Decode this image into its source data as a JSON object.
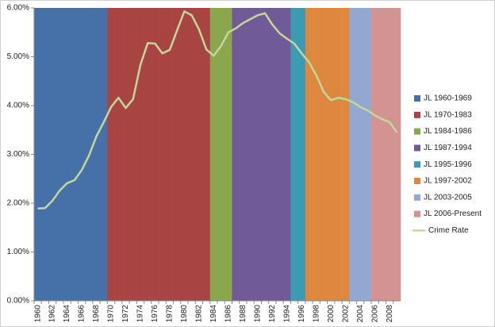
{
  "chart_data": {
    "type": "combo",
    "categories": [
      "1960",
      null,
      "1962",
      null,
      "1964",
      null,
      "1966",
      null,
      "1968",
      null,
      "1970",
      null,
      "1972",
      null,
      "1974",
      null,
      "1976",
      null,
      "1978",
      null,
      "1980",
      null,
      "1982",
      null,
      "1984",
      null,
      "1986",
      null,
      "1988",
      null,
      "1990",
      null,
      "1992",
      null,
      "1994",
      null,
      "1996",
      null,
      "1998",
      null,
      "2000",
      null,
      "2002",
      null,
      "2004",
      null,
      "2006",
      null,
      "2008",
      null
    ],
    "series": [
      {
        "name": "JL 1960-1969",
        "type": "bar",
        "color": "#4671a8",
        "values": [
          6,
          6,
          6,
          6,
          6,
          6,
          6,
          6,
          6,
          6,
          null,
          null,
          null,
          null,
          null,
          null,
          null,
          null,
          null,
          null,
          null,
          null,
          null,
          null,
          null,
          null,
          null,
          null,
          null,
          null,
          null,
          null,
          null,
          null,
          null,
          null,
          null,
          null,
          null,
          null,
          null,
          null,
          null,
          null,
          null,
          null,
          null,
          null,
          null,
          null
        ]
      },
      {
        "name": "JL 1970-1983",
        "type": "bar",
        "color": "#a84542",
        "values": [
          null,
          null,
          null,
          null,
          null,
          null,
          null,
          null,
          null,
          null,
          6,
          6,
          6,
          6,
          6,
          6,
          6,
          6,
          6,
          6,
          6,
          6,
          6,
          6,
          null,
          null,
          null,
          null,
          null,
          null,
          null,
          null,
          null,
          null,
          null,
          null,
          null,
          null,
          null,
          null,
          null,
          null,
          null,
          null,
          null,
          null,
          null,
          null,
          null,
          null
        ]
      },
      {
        "name": "JL 1984-1986",
        "type": "bar",
        "color": "#8aa74e",
        "values": [
          null,
          null,
          null,
          null,
          null,
          null,
          null,
          null,
          null,
          null,
          null,
          null,
          null,
          null,
          null,
          null,
          null,
          null,
          null,
          null,
          null,
          null,
          null,
          null,
          6,
          6,
          6,
          null,
          null,
          null,
          null,
          null,
          null,
          null,
          null,
          null,
          null,
          null,
          null,
          null,
          null,
          null,
          null,
          null,
          null,
          null,
          null,
          null,
          null,
          null
        ]
      },
      {
        "name": "JL 1987-1994",
        "type": "bar",
        "color": "#715a98",
        "values": [
          null,
          null,
          null,
          null,
          null,
          null,
          null,
          null,
          null,
          null,
          null,
          null,
          null,
          null,
          null,
          null,
          null,
          null,
          null,
          null,
          null,
          null,
          null,
          null,
          null,
          null,
          null,
          6,
          6,
          6,
          6,
          6,
          6,
          6,
          6,
          null,
          null,
          null,
          null,
          null,
          null,
          null,
          null,
          null,
          null,
          null,
          null,
          null,
          null,
          null
        ]
      },
      {
        "name": "JL 1995-1996",
        "type": "bar",
        "color": "#3d9ab3",
        "values": [
          null,
          null,
          null,
          null,
          null,
          null,
          null,
          null,
          null,
          null,
          null,
          null,
          null,
          null,
          null,
          null,
          null,
          null,
          null,
          null,
          null,
          null,
          null,
          null,
          null,
          null,
          null,
          null,
          null,
          null,
          null,
          null,
          null,
          null,
          null,
          6,
          6,
          null,
          null,
          null,
          null,
          null,
          null,
          null,
          null,
          null,
          null,
          null,
          null,
          null
        ]
      },
      {
        "name": "JL 1997-2002",
        "type": "bar",
        "color": "#dd883e",
        "values": [
          null,
          null,
          null,
          null,
          null,
          null,
          null,
          null,
          null,
          null,
          null,
          null,
          null,
          null,
          null,
          null,
          null,
          null,
          null,
          null,
          null,
          null,
          null,
          null,
          null,
          null,
          null,
          null,
          null,
          null,
          null,
          null,
          null,
          null,
          null,
          null,
          null,
          6,
          6,
          6,
          6,
          6,
          6,
          null,
          null,
          null,
          null,
          null,
          null,
          null
        ]
      },
      {
        "name": "JL 2003-2005",
        "type": "bar",
        "color": "#93a8d0",
        "values": [
          null,
          null,
          null,
          null,
          null,
          null,
          null,
          null,
          null,
          null,
          null,
          null,
          null,
          null,
          null,
          null,
          null,
          null,
          null,
          null,
          null,
          null,
          null,
          null,
          null,
          null,
          null,
          null,
          null,
          null,
          null,
          null,
          null,
          null,
          null,
          null,
          null,
          null,
          null,
          null,
          null,
          null,
          null,
          6,
          6,
          6,
          null,
          null,
          null,
          null
        ]
      },
      {
        "name": "JL 2006-Present",
        "type": "bar",
        "color": "#d39491",
        "values": [
          null,
          null,
          null,
          null,
          null,
          null,
          null,
          null,
          null,
          null,
          null,
          null,
          null,
          null,
          null,
          null,
          null,
          null,
          null,
          null,
          null,
          null,
          null,
          null,
          null,
          null,
          null,
          null,
          null,
          null,
          null,
          null,
          null,
          null,
          null,
          null,
          null,
          null,
          null,
          null,
          null,
          null,
          null,
          null,
          null,
          null,
          6,
          6,
          6,
          6
        ]
      },
      {
        "name": "Crime Rate",
        "type": "line",
        "color": "#c4d79b",
        "values": [
          1.89,
          1.9,
          2.05,
          2.26,
          2.41,
          2.47,
          2.68,
          2.98,
          3.37,
          3.66,
          3.97,
          4.16,
          3.95,
          4.13,
          4.83,
          5.28,
          5.27,
          5.07,
          5.14,
          5.54,
          5.93,
          5.85,
          5.56,
          5.15,
          5.02,
          5.22,
          5.5,
          5.58,
          5.69,
          5.77,
          5.85,
          5.89,
          5.66,
          5.48,
          5.37,
          5.27,
          5.07,
          4.89,
          4.62,
          4.28,
          4.11,
          4.16,
          4.13,
          4.07,
          3.97,
          3.9,
          3.8,
          3.72,
          3.66,
          3.45
        ]
      }
    ],
    "ylim": [
      0,
      6
    ],
    "yticks": [
      {
        "value": 0,
        "label": "0.00%"
      },
      {
        "value": 1,
        "label": "1.00%"
      },
      {
        "value": 2,
        "label": "2.00%"
      },
      {
        "value": 3,
        "label": "3.00%"
      },
      {
        "value": 4,
        "label": "4.00%"
      },
      {
        "value": 5,
        "label": "5.00%"
      },
      {
        "value": 6,
        "label": "6.00%"
      }
    ],
    "legend": "right"
  }
}
